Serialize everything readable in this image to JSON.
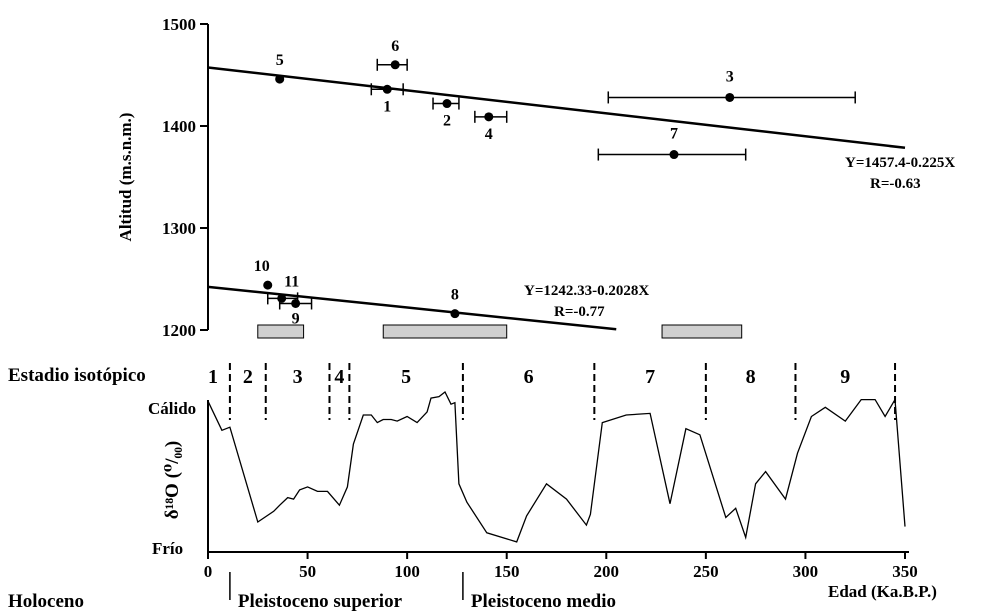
{
  "chart_data": [
    {
      "type": "scatter",
      "ylabel": "Altitud (m.s.n.m.)",
      "ylim": [
        1100,
        1500
      ],
      "xlim": [
        0,
        350
      ],
      "yticks": [
        1200,
        1300,
        1400,
        1500
      ],
      "points": [
        {
          "label": "1",
          "x": 90,
          "y": 1436,
          "xerr": [
            82,
            98
          ]
        },
        {
          "label": "2",
          "x": 120,
          "y": 1422,
          "xerr": [
            113,
            126
          ]
        },
        {
          "label": "3",
          "x": 262,
          "y": 1428,
          "xerr": [
            201,
            325
          ]
        },
        {
          "label": "4",
          "x": 141,
          "y": 1409,
          "xerr": [
            134,
            150
          ]
        },
        {
          "label": "5",
          "x": 36,
          "y": 1446,
          "xerr": null
        },
        {
          "label": "6",
          "x": 94,
          "y": 1460,
          "xerr": [
            85,
            100
          ]
        },
        {
          "label": "7",
          "x": 234,
          "y": 1372,
          "xerr": [
            196,
            270
          ]
        },
        {
          "label": "8",
          "x": 124,
          "y": 1216,
          "xerr": null
        },
        {
          "label": "9",
          "x": 44,
          "y": 1226,
          "xerr": [
            36,
            52
          ]
        },
        {
          "label": "10",
          "x": 30,
          "y": 1244,
          "xerr": null
        },
        {
          "label": "11",
          "x": 37,
          "y": 1231,
          "xerr": [
            30,
            45
          ]
        }
      ],
      "regressions": [
        {
          "equation": "Y=1457.4-0.225X",
          "r": "R=-0.63",
          "intercept": 1457.4,
          "slope": -0.225,
          "x_range": [
            0,
            350
          ]
        },
        {
          "equation": "Y=1242.33-0.2028X",
          "r": "R=-0.77",
          "intercept": 1242.33,
          "slope": -0.2028,
          "x_range": [
            0,
            205
          ]
        }
      ],
      "shaded_ranges": [
        [
          25,
          48
        ],
        [
          88,
          150
        ],
        [
          228,
          268
        ]
      ]
    },
    {
      "type": "line",
      "ylabel": "δ¹⁸O (⁰/₀₀)",
      "xlabel": "Edad (Ka.B.P.)",
      "xlim": [
        0,
        350
      ],
      "xticks": [
        0,
        50,
        100,
        150,
        200,
        250,
        300,
        350
      ],
      "y_axis_labels": {
        "top": "Cálido",
        "bottom": "Frío"
      },
      "y_scale": "relative 0 (Frío) to 1 (Cálido)",
      "x": [
        0,
        7,
        11,
        25,
        33,
        36,
        40,
        43,
        46,
        50,
        55,
        60,
        66,
        70,
        73,
        78,
        82,
        85,
        88,
        92,
        95,
        100,
        105,
        110,
        112,
        116,
        119,
        122,
        124,
        126,
        130,
        140,
        155,
        160,
        170,
        180,
        190,
        192,
        198,
        210,
        222,
        232,
        240,
        247,
        260,
        265,
        270,
        275,
        280,
        290,
        296,
        303,
        310,
        320,
        328,
        335,
        340,
        345,
        350
      ],
      "y": [
        0.94,
        0.75,
        0.77,
        0.15,
        0.22,
        0.26,
        0.31,
        0.3,
        0.36,
        0.38,
        0.35,
        0.35,
        0.26,
        0.38,
        0.66,
        0.85,
        0.85,
        0.8,
        0.82,
        0.82,
        0.81,
        0.84,
        0.8,
        0.87,
        0.96,
        0.97,
        1.0,
        0.92,
        0.93,
        0.4,
        0.28,
        0.08,
        0.02,
        0.19,
        0.4,
        0.3,
        0.13,
        0.2,
        0.8,
        0.85,
        0.86,
        0.27,
        0.76,
        0.72,
        0.18,
        0.24,
        0.05,
        0.4,
        0.48,
        0.3,
        0.6,
        0.84,
        0.9,
        0.81,
        0.95,
        0.95,
        0.84,
        0.95,
        0.12
      ],
      "isotopic_stages": {
        "label": "Estadio isotópico",
        "stages": [
          "1",
          "2",
          "3",
          "4",
          "5",
          "6",
          "7",
          "8",
          "9"
        ],
        "boundaries": [
          11,
          29,
          61,
          71,
          128,
          194,
          250,
          295,
          345
        ]
      },
      "periods": [
        {
          "name": "Holoceno",
          "from": -40,
          "to": 11
        },
        {
          "name": "Pleistoceno superior",
          "from": 11,
          "to": 128
        },
        {
          "name": "Pleistoceno medio",
          "from": 128,
          "to": 350
        }
      ]
    }
  ]
}
